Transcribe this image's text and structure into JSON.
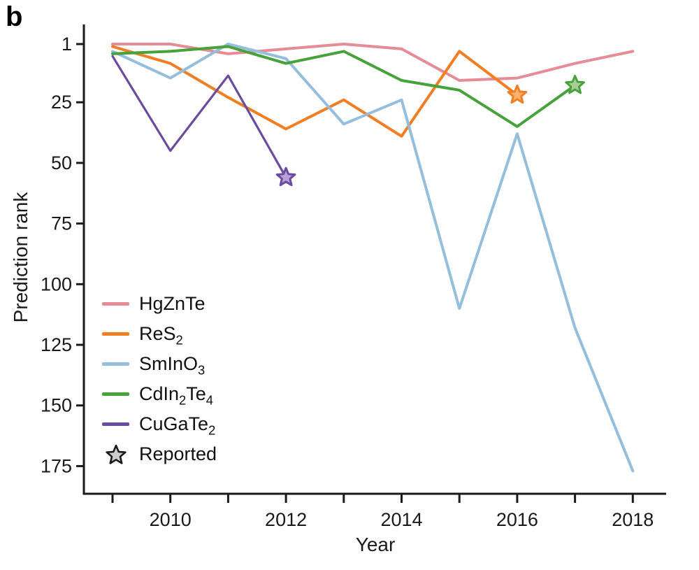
{
  "figure": {
    "panel_label": "b",
    "background_color": "#ffffff",
    "axis_color": "#1a1a1a"
  },
  "chart_data": {
    "type": "line",
    "title": "",
    "xlabel": "Year",
    "ylabel": "Prediction rank",
    "y_axis_inverted": true,
    "y_ticks": [
      1,
      25,
      50,
      75,
      100,
      125,
      150,
      175
    ],
    "x_tick_years_all": [
      2009,
      2010,
      2011,
      2012,
      2013,
      2014,
      2015,
      2016,
      2017,
      2018
    ],
    "x_tick_labels": [
      "2010",
      "2012",
      "2014",
      "2016",
      "2018"
    ],
    "x_tick_years_labeled": [
      2010,
      2012,
      2014,
      2016,
      2018
    ],
    "x_range": [
      2008.5,
      2018.6
    ],
    "y_range": [
      1,
      185
    ],
    "grid": false,
    "legend_position": "lower-left-inside",
    "series": [
      {
        "name": "HgZnTe",
        "label": "HgZnTe",
        "label_markup": "HgZnTe",
        "color": "#E68C96",
        "stroke_width": 4,
        "points": [
          [
            2009,
            1
          ],
          [
            2010,
            1
          ],
          [
            2011,
            5
          ],
          [
            2012,
            3
          ],
          [
            2013,
            1
          ],
          [
            2014,
            3
          ],
          [
            2015,
            16
          ],
          [
            2016,
            15
          ],
          [
            2017,
            9
          ],
          [
            2018,
            4
          ]
        ]
      },
      {
        "name": "ReS2",
        "label": "ReS₂",
        "label_markup": "ReS_2",
        "color": "#F07E24",
        "stroke_width": 4,
        "points": [
          [
            2009,
            2
          ],
          [
            2010,
            9
          ],
          [
            2011,
            23
          ],
          [
            2012,
            36
          ],
          [
            2013,
            24
          ],
          [
            2014,
            39
          ],
          [
            2015,
            4
          ],
          [
            2016,
            22
          ]
        ],
        "reported": {
          "year": 2016,
          "rank": 22,
          "star_fill": "#F9B169"
        }
      },
      {
        "name": "SmInO3",
        "label": "SmInO₃",
        "label_markup": "SmInO_3",
        "color": "#94BEDC",
        "stroke_width": 4,
        "points": [
          [
            2009,
            4
          ],
          [
            2010,
            15
          ],
          [
            2011,
            1
          ],
          [
            2012,
            7
          ],
          [
            2013,
            34
          ],
          [
            2014,
            24
          ],
          [
            2015,
            110
          ],
          [
            2016,
            38
          ],
          [
            2017,
            118
          ],
          [
            2018,
            177
          ]
        ]
      },
      {
        "name": "CdIn2Te4",
        "label": "CdIn₂Te₄",
        "label_markup": "CdIn_2_Te_4",
        "color": "#47A23C",
        "stroke_width": 4,
        "points": [
          [
            2009,
            5
          ],
          [
            2010,
            4
          ],
          [
            2011,
            2
          ],
          [
            2012,
            9
          ],
          [
            2013,
            4
          ],
          [
            2014,
            16
          ],
          [
            2015,
            20
          ],
          [
            2016,
            35
          ],
          [
            2017,
            18
          ]
        ],
        "reported": {
          "year": 2017,
          "rank": 18,
          "star_fill": "#A9D094"
        }
      },
      {
        "name": "CuGaTe2",
        "label": "CuGaTe₂",
        "label_markup": "CuGaTe_2",
        "color": "#6A4C9F",
        "stroke_width": 3.2,
        "points": [
          [
            2009,
            6
          ],
          [
            2010,
            45
          ],
          [
            2011,
            14
          ],
          [
            2012,
            56
          ]
        ],
        "reported": {
          "year": 2012,
          "rank": 56,
          "star_fill": "#B9A0D6"
        }
      }
    ],
    "legend_extra": {
      "label": "Reported",
      "marker": "star",
      "fill": "#CCCCCC",
      "stroke": "#1a1a1a"
    }
  }
}
